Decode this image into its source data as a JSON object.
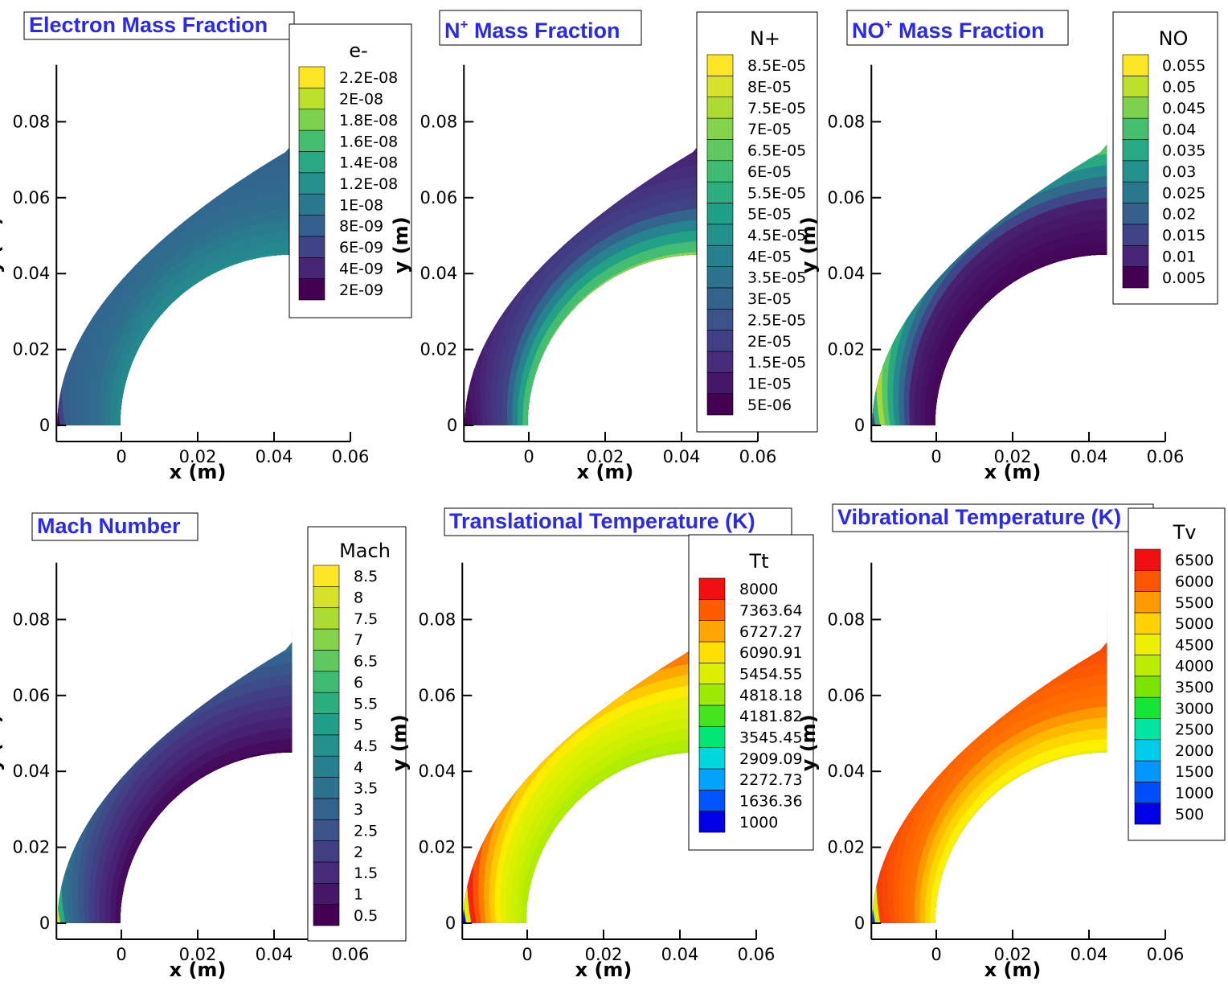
{
  "chart_data": [
    {
      "type": "heatmap",
      "title": "Electron Mass Fraction",
      "variable": "e-",
      "xlabel": "x (m)",
      "ylabel": "y (m)",
      "xlim": [
        -0.017,
        0.06
      ],
      "ylim": [
        0,
        0.095
      ],
      "xticks": [
        "0",
        "0.02",
        "0.04",
        "0.06"
      ],
      "yticks": [
        "0",
        "0.02",
        "0.04",
        "0.06",
        "0.08"
      ],
      "colormap": "viridis",
      "freestream_level": 0.0,
      "shock_level": 0.3,
      "mid_level": 0.35,
      "wall_level": 0.5,
      "levels": [
        "2E-09",
        "4E-09",
        "6E-09",
        "8E-09",
        "1E-08",
        "1.2E-08",
        "1.4E-08",
        "1.6E-08",
        "1.8E-08",
        "2E-08",
        "2.2E-08"
      ]
    },
    {
      "type": "heatmap",
      "title": "N+ Mass Fraction",
      "title_main": "N",
      "title_sup": "+",
      "title_rest": " Mass Fraction",
      "variable": "N+",
      "xlabel": "x (m)",
      "ylabel": "y (m)",
      "xlim": [
        -0.017,
        0.06
      ],
      "ylim": [
        0,
        0.095
      ],
      "xticks": [
        "0",
        "0.02",
        "0.04",
        "0.06"
      ],
      "yticks": [
        "0",
        "0.02",
        "0.04",
        "0.06",
        "0.08"
      ],
      "colormap": "viridis",
      "freestream_level": 0.0,
      "shock_level": 0.05,
      "mid_level": 0.2,
      "wall_level": 0.82,
      "levels": [
        "5E-06",
        "1E-05",
        "1.5E-05",
        "2E-05",
        "2.5E-05",
        "3E-05",
        "3.5E-05",
        "4E-05",
        "4.5E-05",
        "5E-05",
        "5.5E-05",
        "6E-05",
        "6.5E-05",
        "7E-05",
        "7.5E-05",
        "8E-05",
        "8.5E-05"
      ]
    },
    {
      "type": "heatmap",
      "title": "NO+ Mass Fraction",
      "title_main": "NO",
      "title_sup": "+",
      "title_rest": " Mass Fraction",
      "variable": "NO",
      "xlabel": "x (m)",
      "ylabel": "y (m)",
      "xlim": [
        -0.017,
        0.06
      ],
      "ylim": [
        0,
        0.095
      ],
      "xticks": [
        "0",
        "0.02",
        "0.04",
        "0.06"
      ],
      "yticks": [
        "0",
        "0.02",
        "0.04",
        "0.06",
        "0.08"
      ],
      "colormap": "viridis",
      "freestream_level": 0.18,
      "shock_level": 0.92,
      "mid_level": 0.08,
      "wall_level": 0.0,
      "levels": [
        "0.005",
        "0.01",
        "0.015",
        "0.02",
        "0.025",
        "0.03",
        "0.035",
        "0.04",
        "0.045",
        "0.05",
        "0.055"
      ]
    },
    {
      "type": "heatmap",
      "title": "Mach Number",
      "variable": "Mach",
      "xlabel": "x (m)",
      "ylabel": "y (m)",
      "xlim": [
        -0.017,
        0.06
      ],
      "ylim": [
        0,
        0.095
      ],
      "xticks": [
        "0",
        "0.02",
        "0.04",
        "0.06"
      ],
      "yticks": [
        "0",
        "0.02",
        "0.04",
        "0.06",
        "0.08"
      ],
      "colormap": "viridis",
      "freestream_level": 1.0,
      "shock_level": 0.4,
      "mid_level": 0.15,
      "wall_level": 0.0,
      "levels": [
        "0.5",
        "1",
        "1.5",
        "2",
        "2.5",
        "3",
        "3.5",
        "4",
        "4.5",
        "5",
        "5.5",
        "6",
        "6.5",
        "7",
        "7.5",
        "8",
        "8.5"
      ]
    },
    {
      "type": "heatmap",
      "title": "Translational Temperature (K)",
      "variable": "Tt",
      "xlabel": "x (m)",
      "ylabel": "y (m)",
      "xlim": [
        -0.017,
        0.06
      ],
      "ylim": [
        0,
        0.095
      ],
      "xticks": [
        "0",
        "0.02",
        "0.04",
        "0.06"
      ],
      "yticks": [
        "0",
        "0.02",
        "0.04",
        "0.06",
        "0.08"
      ],
      "colormap": "jet",
      "freestream_level": 0.0,
      "shock_level": 1.0,
      "mid_level": 0.65,
      "wall_level": 0.55,
      "levels": [
        "1000",
        "1636.36",
        "2272.73",
        "2909.09",
        "3545.45",
        "4181.82",
        "4818.18",
        "5454.55",
        "6090.91",
        "6727.27",
        "7363.64",
        "8000"
      ]
    },
    {
      "type": "heatmap",
      "title": "Vibrational Temperature (K)",
      "variable": "Tv",
      "xlabel": "x (m)",
      "ylabel": "y (m)",
      "xlim": [
        -0.017,
        0.06
      ],
      "ylim": [
        0,
        0.095
      ],
      "xticks": [
        "0",
        "0.02",
        "0.04",
        "0.06"
      ],
      "yticks": [
        "0",
        "0.02",
        "0.04",
        "0.06",
        "0.08"
      ],
      "colormap": "jet",
      "freestream_level": 0.05,
      "shock_level": 0.95,
      "mid_level": 0.88,
      "wall_level": 0.65,
      "levels": [
        "500",
        "1000",
        "1500",
        "2000",
        "2500",
        "3000",
        "3500",
        "4000",
        "4500",
        "5000",
        "5500",
        "6000",
        "6500"
      ]
    }
  ]
}
